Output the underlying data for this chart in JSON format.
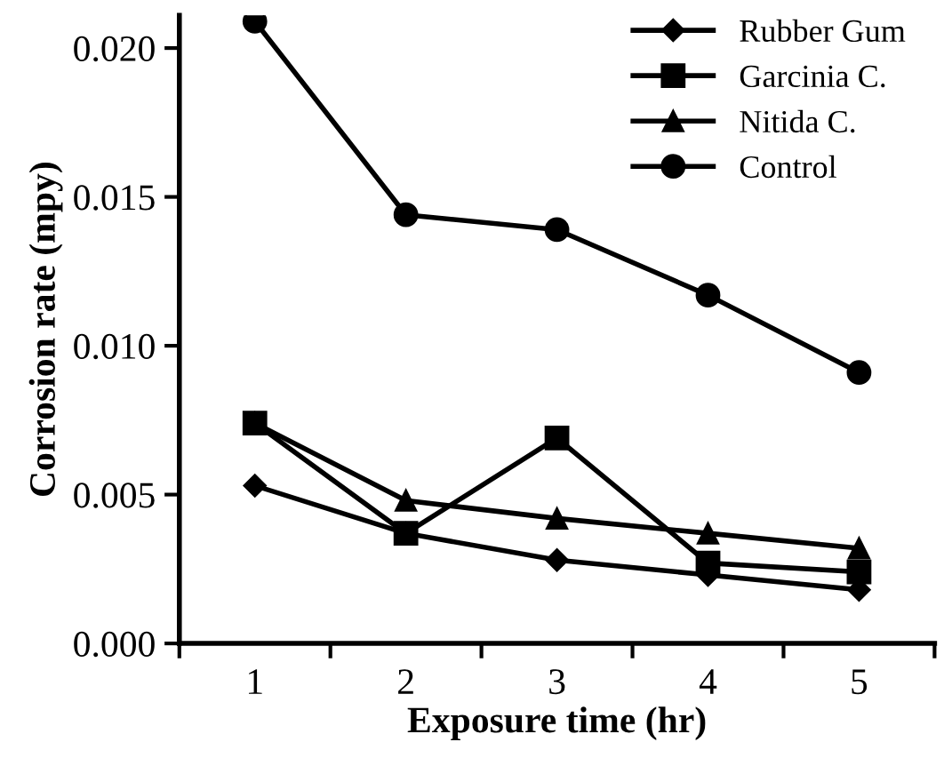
{
  "chart_data": {
    "type": "line",
    "xlabel": "Exposure time (hr)",
    "ylabel": "Corrosion rate (mpy)",
    "categories": [
      "1",
      "2",
      "3",
      "4",
      "5"
    ],
    "series": [
      {
        "name": "Rubber Gum",
        "color": "#000000",
        "marker": "diamond",
        "values": [
          0.0053,
          0.0037,
          0.0028,
          0.0023,
          0.0018
        ]
      },
      {
        "name": "Garcinia C.",
        "color": "#000000",
        "marker": "square",
        "values": [
          0.0074,
          0.0037,
          0.0069,
          0.0027,
          0.0024
        ]
      },
      {
        "name": "Nitida C.",
        "color": "#000000",
        "marker": "triangle",
        "values": [
          0.0074,
          0.0048,
          0.0042,
          0.0037,
          0.0032
        ]
      },
      {
        "name": "Control",
        "color": "#000000",
        "marker": "circle",
        "values": [
          0.0209,
          0.0144,
          0.0139,
          0.0117,
          0.0091
        ]
      }
    ],
    "ylim": [
      0,
      0.0211
    ],
    "yticks": [
      {
        "value": 0,
        "label": "0.000"
      },
      {
        "value": 0.005,
        "label": "0.005"
      },
      {
        "value": 0.01,
        "label": "0.010"
      },
      {
        "value": 0.015,
        "label": "0.015"
      },
      {
        "value": 0.02,
        "label": "0.020"
      }
    ],
    "legend": "top right",
    "grid": false,
    "line_style": "solid"
  }
}
